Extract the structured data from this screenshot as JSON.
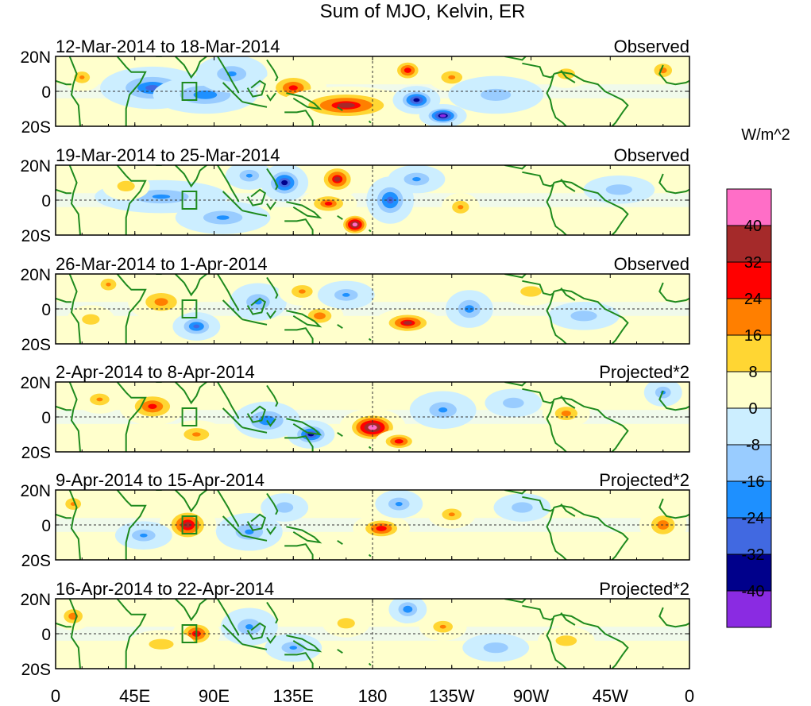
{
  "chart_data": {
    "type": "heatmap",
    "title": "Sum of MJO, Kelvin, ER",
    "units_label": "W/m^2",
    "x_ticks": [
      "0",
      "45E",
      "90E",
      "135E",
      "180",
      "135W",
      "90W",
      "45W",
      "0"
    ],
    "x_tick_values": [
      0,
      45,
      90,
      135,
      180,
      225,
      270,
      315,
      360
    ],
    "x_range": [
      0,
      360
    ],
    "y_ticks": [
      "20N",
      "0",
      "20S"
    ],
    "y_tick_values": [
      20,
      0,
      -20
    ],
    "y_range": [
      -20,
      20
    ],
    "colorbar": {
      "levels": [
        "40",
        "32",
        "24",
        "16",
        "8",
        "0",
        "-8",
        "-16",
        "-24",
        "-32",
        "-40"
      ],
      "colors": [
        "#ff6ec7",
        "#a52a2a",
        "#ff0000",
        "#ff7f00",
        "#ffd633",
        "#ffffcc",
        "#cceeff",
        "#99ccff",
        "#1e90ff",
        "#4169e1",
        "#00008b",
        "#8a2be2"
      ]
    },
    "panels": [
      {
        "date_range": "12-Mar-2014 to 18-Mar-2014",
        "label": "Observed",
        "blobs": [
          {
            "lon": 55,
            "lat": 2,
            "val": -18,
            "w": 22,
            "h": 9
          },
          {
            "lon": 85,
            "lat": -2,
            "val": -15,
            "w": 22,
            "h": 8
          },
          {
            "lon": 100,
            "lat": 10,
            "val": -10,
            "w": 15,
            "h": 8
          },
          {
            "lon": 135,
            "lat": 2,
            "val": 20,
            "w": 14,
            "h": 8
          },
          {
            "lon": 165,
            "lat": -8,
            "val": 26,
            "w": 28,
            "h": 8
          },
          {
            "lon": 205,
            "lat": -5,
            "val": -30,
            "w": 10,
            "h": 6
          },
          {
            "lon": 220,
            "lat": -14,
            "val": -36,
            "w": 10,
            "h": 5
          },
          {
            "lon": 200,
            "lat": 12,
            "val": 24,
            "w": 8,
            "h": 6
          },
          {
            "lon": 225,
            "lat": 8,
            "val": 12,
            "w": 10,
            "h": 6
          },
          {
            "lon": 15,
            "lat": 8,
            "val": 10,
            "w": 8,
            "h": 6
          },
          {
            "lon": 290,
            "lat": 10,
            "val": 8,
            "w": 10,
            "h": 6
          },
          {
            "lon": 345,
            "lat": 12,
            "val": 14,
            "w": 8,
            "h": 6
          },
          {
            "lon": 250,
            "lat": -2,
            "val": -6,
            "w": 20,
            "h": 8
          }
        ]
      },
      {
        "date_range": "19-Mar-2014 to 25-Mar-2014",
        "label": "Observed",
        "blobs": [
          {
            "lon": 130,
            "lat": 10,
            "val": -28,
            "w": 10,
            "h": 8
          },
          {
            "lon": 160,
            "lat": 12,
            "val": 26,
            "w": 10,
            "h": 8
          },
          {
            "lon": 170,
            "lat": -14,
            "val": 40,
            "w": 8,
            "h": 6
          },
          {
            "lon": 155,
            "lat": -2,
            "val": 18,
            "w": 12,
            "h": 6
          },
          {
            "lon": 190,
            "lat": 0,
            "val": -22,
            "w": 10,
            "h": 10
          },
          {
            "lon": 205,
            "lat": 12,
            "val": -12,
            "w": 12,
            "h": 6
          },
          {
            "lon": 60,
            "lat": 2,
            "val": -10,
            "w": 28,
            "h": 7
          },
          {
            "lon": 95,
            "lat": -10,
            "val": -10,
            "w": 20,
            "h": 7
          },
          {
            "lon": 110,
            "lat": 14,
            "val": -10,
            "w": 10,
            "h": 6
          },
          {
            "lon": 40,
            "lat": 8,
            "val": 8,
            "w": 10,
            "h": 6
          },
          {
            "lon": 230,
            "lat": -4,
            "val": 12,
            "w": 8,
            "h": 6
          },
          {
            "lon": 320,
            "lat": 6,
            "val": -8,
            "w": 15,
            "h": 6
          }
        ]
      },
      {
        "date_range": "26-Mar-2014 to 1-Apr-2014",
        "label": "Observed",
        "blobs": [
          {
            "lon": 60,
            "lat": 4,
            "val": 14,
            "w": 14,
            "h": 8
          },
          {
            "lon": 80,
            "lat": -10,
            "val": -20,
            "w": 10,
            "h": 6
          },
          {
            "lon": 115,
            "lat": 4,
            "val": -10,
            "w": 12,
            "h": 8
          },
          {
            "lon": 140,
            "lat": 10,
            "val": 12,
            "w": 10,
            "h": 6
          },
          {
            "lon": 150,
            "lat": -4,
            "val": 16,
            "w": 10,
            "h": 6
          },
          {
            "lon": 165,
            "lat": 8,
            "val": -10,
            "w": 12,
            "h": 6
          },
          {
            "lon": 200,
            "lat": -8,
            "val": 26,
            "w": 14,
            "h": 6
          },
          {
            "lon": 235,
            "lat": 0,
            "val": -14,
            "w": 10,
            "h": 8
          },
          {
            "lon": 20,
            "lat": -6,
            "val": 8,
            "w": 10,
            "h": 6
          },
          {
            "lon": 30,
            "lat": 14,
            "val": 10,
            "w": 8,
            "h": 6
          },
          {
            "lon": 270,
            "lat": 10,
            "val": 8,
            "w": 12,
            "h": 6
          },
          {
            "lon": 300,
            "lat": -4,
            "val": -8,
            "w": 15,
            "h": 6
          }
        ]
      },
      {
        "date_range": "2-Apr-2014 to 8-Apr-2014",
        "label": "Projected*2",
        "blobs": [
          {
            "lon": 55,
            "lat": 6,
            "val": 20,
            "w": 14,
            "h": 8
          },
          {
            "lon": 80,
            "lat": -10,
            "val": 12,
            "w": 12,
            "h": 6
          },
          {
            "lon": 120,
            "lat": -2,
            "val": -16,
            "w": 14,
            "h": 8
          },
          {
            "lon": 145,
            "lat": -10,
            "val": -28,
            "w": 10,
            "h": 6
          },
          {
            "lon": 180,
            "lat": -6,
            "val": 40,
            "w": 14,
            "h": 8
          },
          {
            "lon": 195,
            "lat": -14,
            "val": 24,
            "w": 10,
            "h": 5
          },
          {
            "lon": 220,
            "lat": 4,
            "val": -10,
            "w": 14,
            "h": 8
          },
          {
            "lon": 25,
            "lat": 10,
            "val": 10,
            "w": 10,
            "h": 6
          },
          {
            "lon": 260,
            "lat": 8,
            "val": -8,
            "w": 12,
            "h": 6
          },
          {
            "lon": 290,
            "lat": 2,
            "val": 14,
            "w": 10,
            "h": 6
          },
          {
            "lon": 345,
            "lat": 14,
            "val": -10,
            "w": 8,
            "h": 6
          }
        ]
      },
      {
        "date_range": "9-Apr-2014 to 15-Apr-2014",
        "label": "Projected*2",
        "blobs": [
          {
            "lon": 75,
            "lat": 0,
            "val": 28,
            "w": 12,
            "h": 9
          },
          {
            "lon": 110,
            "lat": -4,
            "val": -10,
            "w": 14,
            "h": 8
          },
          {
            "lon": 130,
            "lat": 10,
            "val": -8,
            "w": 10,
            "h": 6
          },
          {
            "lon": 185,
            "lat": -2,
            "val": 24,
            "w": 12,
            "h": 6
          },
          {
            "lon": 195,
            "lat": 12,
            "val": -12,
            "w": 10,
            "h": 6
          },
          {
            "lon": 225,
            "lat": 6,
            "val": 10,
            "w": 10,
            "h": 6
          },
          {
            "lon": 50,
            "lat": -6,
            "val": -10,
            "w": 12,
            "h": 6
          },
          {
            "lon": 345,
            "lat": 0,
            "val": 16,
            "w": 10,
            "h": 8
          },
          {
            "lon": 10,
            "lat": 12,
            "val": 10,
            "w": 8,
            "h": 6
          },
          {
            "lon": 265,
            "lat": 10,
            "val": -8,
            "w": 12,
            "h": 6
          }
        ]
      },
      {
        "date_range": "16-Apr-2014 to 22-Apr-2014",
        "label": "Projected*2",
        "blobs": [
          {
            "lon": 80,
            "lat": 0,
            "val": 24,
            "w": 10,
            "h": 7
          },
          {
            "lon": 60,
            "lat": -6,
            "val": 8,
            "w": 14,
            "h": 6
          },
          {
            "lon": 110,
            "lat": 4,
            "val": -10,
            "w": 12,
            "h": 8
          },
          {
            "lon": 135,
            "lat": -8,
            "val": -10,
            "w": 12,
            "h": 6
          },
          {
            "lon": 200,
            "lat": 14,
            "val": -16,
            "w": 8,
            "h": 6
          },
          {
            "lon": 220,
            "lat": 4,
            "val": 10,
            "w": 10,
            "h": 6
          },
          {
            "lon": 10,
            "lat": 10,
            "val": 16,
            "w": 8,
            "h": 6
          },
          {
            "lon": 165,
            "lat": 6,
            "val": 8,
            "w": 10,
            "h": 6
          },
          {
            "lon": 290,
            "lat": -4,
            "val": 8,
            "w": 12,
            "h": 6
          },
          {
            "lon": 250,
            "lat": -8,
            "val": -8,
            "w": 14,
            "h": 6
          }
        ]
      }
    ],
    "reference_box": {
      "lon_min": 72,
      "lon_max": 80,
      "lat_min": -5,
      "lat_max": 5
    }
  }
}
